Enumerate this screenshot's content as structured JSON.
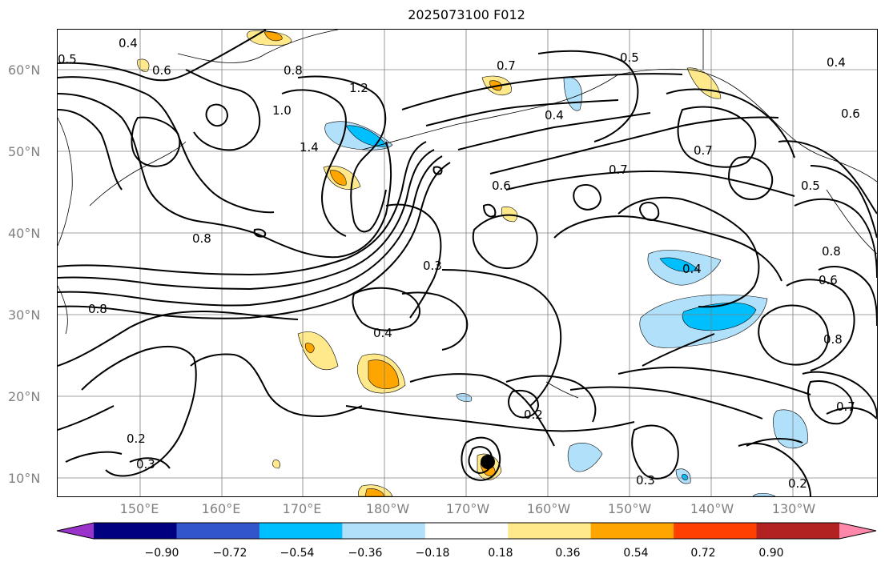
{
  "title": "2025073100 F012",
  "lat_labels": [
    "60°N",
    "50°N",
    "40°N",
    "30°N",
    "20°N",
    "10°N"
  ],
  "lon_labels": [
    "150°E",
    "160°E",
    "170°E",
    "180°W",
    "170°W",
    "160°W",
    "150°W",
    "140°W",
    "130°W"
  ],
  "colorbar": {
    "ticks": [
      "−0.90",
      "−0.72",
      "−0.54",
      "−0.36",
      "−0.18",
      "0.18",
      "0.36",
      "0.54",
      "0.72",
      "0.90"
    ],
    "colors": [
      "#9a33cc",
      "#000080",
      "#3355cc",
      "#00bfff",
      "#b0e0fa",
      "#ffffff",
      "#ffe98a",
      "#ffa500",
      "#ff4000",
      "#b22222",
      "#ff88aa"
    ]
  },
  "contour_labels": [
    "0.4",
    "0.5",
    "0.6",
    "0.7",
    "0.8",
    "1.0",
    "1.2",
    "1.4",
    "0.3",
    "0.2",
    "0.5",
    "0.4",
    "0.7",
    "0.8",
    "0.6",
    "0.7",
    "0.8",
    "0.4",
    "0.3",
    "0.2",
    "0.7",
    "0.6",
    "0.8",
    "0.4",
    "0.3",
    "0.2",
    "0.5",
    "0.8",
    "0.4",
    "0.6"
  ]
}
